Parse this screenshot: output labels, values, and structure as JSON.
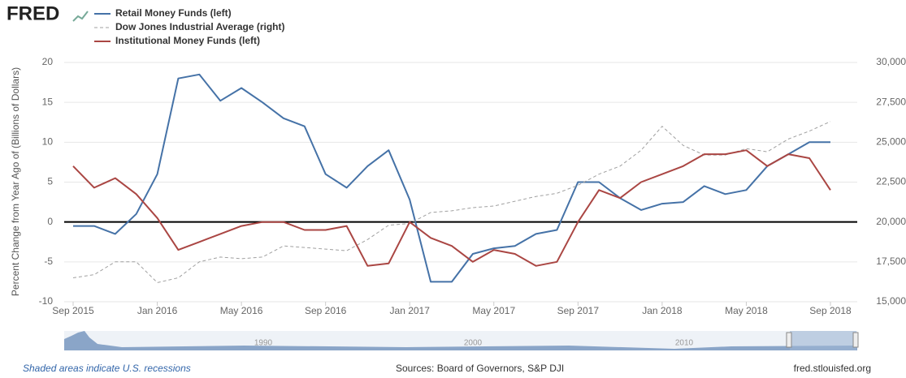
{
  "logo": "FRED",
  "chart_data": {
    "type": "line",
    "y_label": "Percent Change from Year Ago of (Billions of Dollars)",
    "x": [
      "Sep 2015",
      "Oct 2015",
      "Nov 2015",
      "Dec 2015",
      "Jan 2016",
      "Feb 2016",
      "Mar 2016",
      "Apr 2016",
      "May 2016",
      "Jun 2016",
      "Jul 2016",
      "Aug 2016",
      "Sep 2016",
      "Oct 2016",
      "Nov 2016",
      "Dec 2016",
      "Jan 2017",
      "Feb 2017",
      "Mar 2017",
      "Apr 2017",
      "May 2017",
      "Jun 2017",
      "Jul 2017",
      "Aug 2017",
      "Sep 2017",
      "Oct 2017",
      "Nov 2017",
      "Dec 2017",
      "Jan 2018",
      "Feb 2018",
      "Mar 2018",
      "Apr 2018",
      "May 2018",
      "Jun 2018",
      "Jul 2018",
      "Aug 2018",
      "Sep 2018"
    ],
    "xticks": [
      "Sep 2015",
      "Jan 2016",
      "May 2016",
      "Sep 2016",
      "Jan 2017",
      "May 2017",
      "Sep 2017",
      "Jan 2018",
      "May 2018",
      "Sep 2018"
    ],
    "series": [
      {
        "name": "Retail Money Funds (left)",
        "color": "#4572a7",
        "axis": "y",
        "dash": false,
        "values": [
          -0.5,
          -0.5,
          -1.5,
          1,
          6,
          18,
          18.5,
          15.2,
          16.8,
          15,
          13,
          12,
          6,
          4.3,
          7,
          9,
          2.8,
          -7.5,
          -7.5,
          -4,
          -3.3,
          -3,
          -1.5,
          -1,
          5,
          5,
          3,
          1.5,
          2.3,
          2.5,
          4.5,
          3.5,
          4,
          7,
          8.5,
          10,
          10
        ]
      },
      {
        "name": "Dow Jones Industrial Average (right)",
        "color": "#a0a0a0",
        "axis": "y2",
        "dash": true,
        "values": [
          16500,
          16700,
          17500,
          17500,
          16200,
          16500,
          17500,
          17800,
          17700,
          17800,
          18500,
          18400,
          18300,
          18200,
          18900,
          19800,
          19900,
          20600,
          20700,
          20900,
          21000,
          21300,
          21600,
          21800,
          22300,
          23000,
          23500,
          24500,
          26000,
          24800,
          24200,
          24200,
          24600,
          24400,
          25200,
          25700,
          26300
        ]
      },
      {
        "name": "Institutional Money Funds (left)",
        "color": "#aa4643",
        "axis": "y",
        "dash": false,
        "values": [
          7,
          4.3,
          5.5,
          3.5,
          0.5,
          -3.5,
          -2.5,
          -1.5,
          -0.5,
          0,
          0,
          -1,
          -1,
          -0.5,
          -5.5,
          -5.2,
          0,
          -2,
          -3,
          -5,
          -3.5,
          -4,
          -5.5,
          -5,
          0,
          4,
          3,
          5,
          6,
          7,
          8.5,
          8.5,
          9,
          7,
          8.5,
          8,
          4
        ]
      }
    ],
    "ylim": [
      -10,
      20
    ],
    "yticks": [
      -10,
      -5,
      0,
      5,
      10,
      15,
      20
    ],
    "y2lim": [
      15000,
      30000
    ],
    "y2ticks": [
      {
        "value": 15000,
        "label": "15,000"
      },
      {
        "value": 17500,
        "label": "17,500"
      },
      {
        "value": 20000,
        "label": "20,000"
      },
      {
        "value": 22500,
        "label": "22,500"
      },
      {
        "value": 25000,
        "label": "25,000"
      },
      {
        "value": 27500,
        "label": "27,500"
      },
      {
        "value": 30000,
        "label": "30,000"
      }
    ],
    "grid": true,
    "zero_line": true
  },
  "navigator_labels": [
    "1990",
    "2000",
    "2010"
  ],
  "footer": {
    "recessions": "Shaded areas indicate U.S. recessions",
    "sources": "Sources: Board of Governors, S&P DJI",
    "site": "fred.stlouisfed.org"
  }
}
